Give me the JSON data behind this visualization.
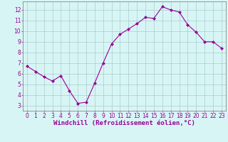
{
  "x": [
    0,
    1,
    2,
    3,
    4,
    5,
    6,
    7,
    8,
    9,
    10,
    11,
    12,
    13,
    14,
    15,
    16,
    17,
    18,
    19,
    20,
    21,
    22,
    23
  ],
  "y": [
    6.7,
    6.2,
    5.7,
    5.3,
    5.8,
    4.4,
    3.2,
    3.3,
    5.1,
    7.0,
    8.8,
    9.7,
    10.2,
    10.7,
    11.3,
    11.2,
    12.3,
    12.0,
    11.8,
    10.6,
    9.9,
    9.0,
    9.0,
    8.4
  ],
  "line_color": "#990099",
  "marker": "D",
  "marker_size": 2.0,
  "bg_color": "#d8f5f5",
  "grid_color": "#aacccc",
  "xlabel": "Windchill (Refroidissement éolien,°C)",
  "xlabel_color": "#990099",
  "xlim": [
    -0.5,
    23.5
  ],
  "ylim": [
    2.5,
    12.8
  ],
  "yticks": [
    3,
    4,
    5,
    6,
    7,
    8,
    9,
    10,
    11,
    12
  ],
  "xticks": [
    0,
    1,
    2,
    3,
    4,
    5,
    6,
    7,
    8,
    9,
    10,
    11,
    12,
    13,
    14,
    15,
    16,
    17,
    18,
    19,
    20,
    21,
    22,
    23
  ],
  "tick_color": "#990099",
  "axis_color": "#990099",
  "spine_color": "#888888",
  "font_size": 5.5,
  "xlabel_fontsize": 6.5
}
